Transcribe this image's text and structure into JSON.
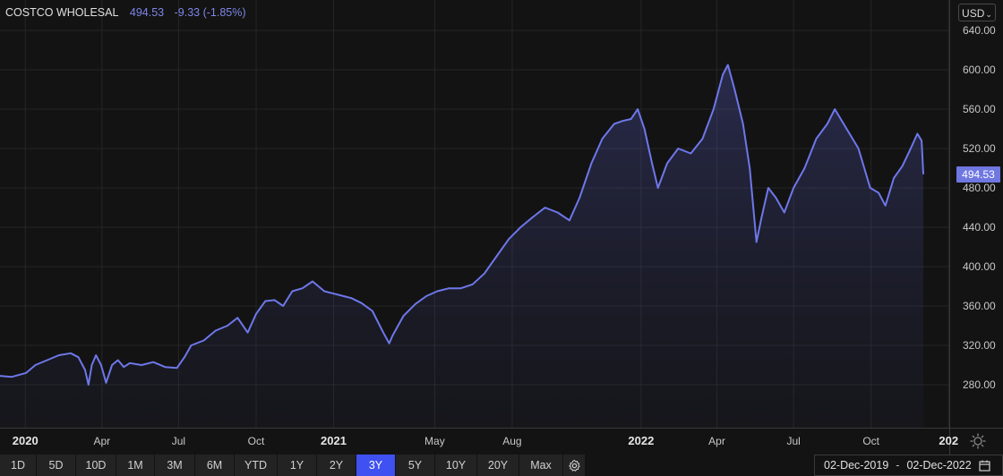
{
  "header": {
    "symbol": "COSTCO WHOLESAL",
    "price": "494.53",
    "change": "-9.33 (-1.85%)"
  },
  "currency": {
    "label": "USD"
  },
  "last_price_tag": "494.53",
  "colors": {
    "background": "#131313",
    "line": "#6e77ea",
    "active_range": "#3f51f0",
    "price_tag": "#6f77e0"
  },
  "range_buttons": [
    {
      "label": "1D",
      "active": false
    },
    {
      "label": "5D",
      "active": false
    },
    {
      "label": "10D",
      "active": false
    },
    {
      "label": "1M",
      "active": false
    },
    {
      "label": "3M",
      "active": false
    },
    {
      "label": "6M",
      "active": false
    },
    {
      "label": "YTD",
      "active": false
    },
    {
      "label": "1Y",
      "active": false
    },
    {
      "label": "2Y",
      "active": false
    },
    {
      "label": "3Y",
      "active": true
    },
    {
      "label": "5Y",
      "active": false
    },
    {
      "label": "10Y",
      "active": false
    },
    {
      "label": "20Y",
      "active": false
    },
    {
      "label": "Max",
      "active": false
    }
  ],
  "date_range": {
    "from": "02-Dec-2019",
    "to": "02-Dec-2022"
  },
  "icons": {
    "chart_settings": "gear-icon",
    "calendar": "calendar-icon",
    "axis_settings": "sun-gear-icon",
    "currency_dropdown": "chevron-down-icon"
  },
  "chart_data": {
    "type": "area",
    "ylim": [
      245,
      650
    ],
    "y_ticks": [
      280,
      320,
      360,
      400,
      440,
      480,
      520,
      560,
      600,
      640
    ],
    "y_tick_labels": [
      "280.00",
      "320.00",
      "360.00",
      "400.00",
      "440.00",
      "480.00",
      "520.00",
      "560.00",
      "600.00",
      "640.00"
    ],
    "xlim": [
      "2019-12-02",
      "2022-12-02"
    ],
    "x_ticks": [
      {
        "date": "2020-01-01",
        "label": "2020",
        "major": true
      },
      {
        "date": "2020-04-01",
        "label": "Apr",
        "major": false
      },
      {
        "date": "2020-07-01",
        "label": "Jul",
        "major": false
      },
      {
        "date": "2020-10-01",
        "label": "Oct",
        "major": false
      },
      {
        "date": "2021-01-01",
        "label": "2021",
        "major": true
      },
      {
        "date": "2021-05-01",
        "label": "May",
        "major": false
      },
      {
        "date": "2021-08-01",
        "label": "Aug",
        "major": false
      },
      {
        "date": "2022-01-01",
        "label": "2022",
        "major": true
      },
      {
        "date": "2022-04-01",
        "label": "Apr",
        "major": false
      },
      {
        "date": "2022-07-01",
        "label": "Jul",
        "major": false
      },
      {
        "date": "2022-10-01",
        "label": "Oct",
        "major": false
      },
      {
        "date": "2023-01-01",
        "label": "202",
        "major": true
      }
    ],
    "grid": true,
    "series": [
      {
        "points": [
          [
            "2019-12-02",
            289
          ],
          [
            "2019-12-16",
            288
          ],
          [
            "2020-01-02",
            292
          ],
          [
            "2020-01-13",
            300
          ],
          [
            "2020-01-27",
            305
          ],
          [
            "2020-02-10",
            310
          ],
          [
            "2020-02-24",
            312
          ],
          [
            "2020-03-04",
            308
          ],
          [
            "2020-03-12",
            295
          ],
          [
            "2020-03-16",
            280
          ],
          [
            "2020-03-20",
            300
          ],
          [
            "2020-03-25",
            310
          ],
          [
            "2020-03-31",
            300
          ],
          [
            "2020-04-06",
            282
          ],
          [
            "2020-04-13",
            300
          ],
          [
            "2020-04-20",
            305
          ],
          [
            "2020-04-27",
            298
          ],
          [
            "2020-05-04",
            302
          ],
          [
            "2020-05-18",
            300
          ],
          [
            "2020-06-01",
            303
          ],
          [
            "2020-06-15",
            298
          ],
          [
            "2020-06-29",
            297
          ],
          [
            "2020-07-08",
            308
          ],
          [
            "2020-07-16",
            320
          ],
          [
            "2020-07-31",
            325
          ],
          [
            "2020-08-14",
            335
          ],
          [
            "2020-08-28",
            340
          ],
          [
            "2020-09-09",
            348
          ],
          [
            "2020-09-21",
            333
          ],
          [
            "2020-10-01",
            352
          ],
          [
            "2020-10-12",
            365
          ],
          [
            "2020-10-23",
            366
          ],
          [
            "2020-11-02",
            360
          ],
          [
            "2020-11-13",
            375
          ],
          [
            "2020-11-25",
            378
          ],
          [
            "2020-12-07",
            385
          ],
          [
            "2020-12-21",
            375
          ],
          [
            "2021-01-04",
            372
          ],
          [
            "2021-01-13",
            370
          ],
          [
            "2021-01-22",
            368
          ],
          [
            "2021-02-03",
            363
          ],
          [
            "2021-02-16",
            355
          ],
          [
            "2021-03-01",
            333
          ],
          [
            "2021-03-08",
            322
          ],
          [
            "2021-03-12",
            330
          ],
          [
            "2021-03-25",
            350
          ],
          [
            "2021-04-08",
            362
          ],
          [
            "2021-04-21",
            370
          ],
          [
            "2021-05-04",
            375
          ],
          [
            "2021-05-18",
            378
          ],
          [
            "2021-06-01",
            378
          ],
          [
            "2021-06-15",
            382
          ],
          [
            "2021-06-29",
            393
          ],
          [
            "2021-07-13",
            410
          ],
          [
            "2021-07-28",
            428
          ],
          [
            "2021-08-11",
            440
          ],
          [
            "2021-08-25",
            450
          ],
          [
            "2021-09-09",
            460
          ],
          [
            "2021-09-24",
            455
          ],
          [
            "2021-10-08",
            447
          ],
          [
            "2021-10-20",
            470
          ],
          [
            "2021-11-03",
            505
          ],
          [
            "2021-11-16",
            530
          ],
          [
            "2021-11-30",
            545
          ],
          [
            "2021-12-10",
            548
          ],
          [
            "2021-12-20",
            550
          ],
          [
            "2021-12-28",
            560
          ],
          [
            "2022-01-05",
            540
          ],
          [
            "2022-01-14",
            505
          ],
          [
            "2022-01-21",
            480
          ],
          [
            "2022-02-01",
            505
          ],
          [
            "2022-02-14",
            520
          ],
          [
            "2022-03-01",
            515
          ],
          [
            "2022-03-15",
            530
          ],
          [
            "2022-03-28",
            560
          ],
          [
            "2022-04-08",
            595
          ],
          [
            "2022-04-14",
            605
          ],
          [
            "2022-04-22",
            580
          ],
          [
            "2022-05-02",
            545
          ],
          [
            "2022-05-10",
            500
          ],
          [
            "2022-05-18",
            425
          ],
          [
            "2022-05-24",
            450
          ],
          [
            "2022-06-01",
            480
          ],
          [
            "2022-06-10",
            470
          ],
          [
            "2022-06-20",
            455
          ],
          [
            "2022-07-01",
            480
          ],
          [
            "2022-07-14",
            500
          ],
          [
            "2022-07-28",
            530
          ],
          [
            "2022-08-10",
            545
          ],
          [
            "2022-08-19",
            560
          ],
          [
            "2022-09-02",
            540
          ],
          [
            "2022-09-16",
            520
          ],
          [
            "2022-09-30",
            480
          ],
          [
            "2022-10-10",
            475
          ],
          [
            "2022-10-18",
            462
          ],
          [
            "2022-10-28",
            490
          ],
          [
            "2022-11-07",
            502
          ],
          [
            "2022-11-16",
            518
          ],
          [
            "2022-11-25",
            535
          ],
          [
            "2022-11-30",
            528
          ],
          [
            "2022-12-02",
            494.53
          ]
        ]
      }
    ]
  }
}
